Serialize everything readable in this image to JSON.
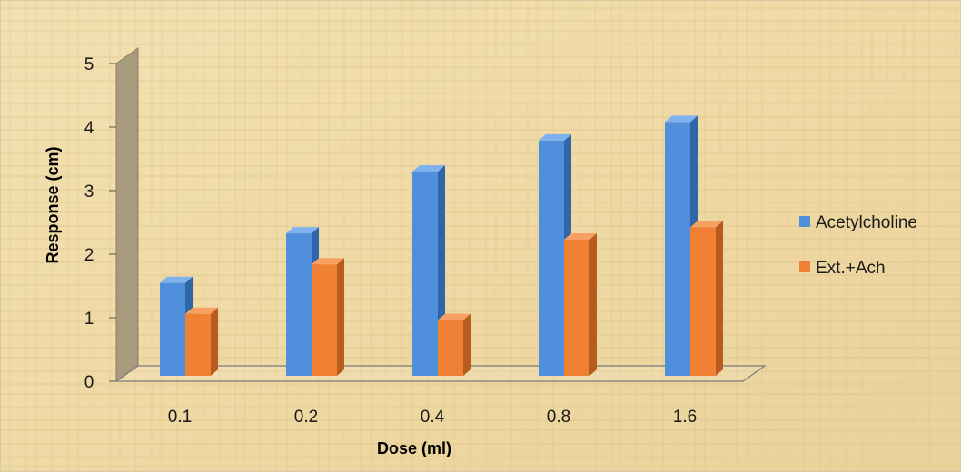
{
  "chart_data": {
    "type": "bar",
    "title": "",
    "xlabel": "Dose (ml)",
    "ylabel": "Response (cm)",
    "categories": [
      "0.1",
      "0.2",
      "0.4",
      "0.8",
      "1.6"
    ],
    "series": [
      {
        "name": "Acetylcholine",
        "values": [
          1.5,
          2.3,
          3.3,
          3.8,
          4.1
        ]
      },
      {
        "name": "Ext.+Ach",
        "values": [
          1.0,
          1.8,
          0.9,
          2.2,
          2.4
        ]
      }
    ],
    "ylim": [
      0,
      5
    ],
    "yticks": [
      "0",
      "1",
      "2",
      "3",
      "4",
      "5"
    ],
    "legend_position": "right",
    "grid": false,
    "style": "3d-clustered-column",
    "colors": {
      "series_front": [
        "#4f8fdc",
        "#f08033"
      ],
      "series_side": [
        "#2f66a8",
        "#b85b1e"
      ],
      "series_top": [
        "#7fb2ee",
        "#f6a064"
      ],
      "background": "#f1dcaa",
      "wall": "#a89a7c",
      "floor_line": "#7a7a7a"
    }
  }
}
